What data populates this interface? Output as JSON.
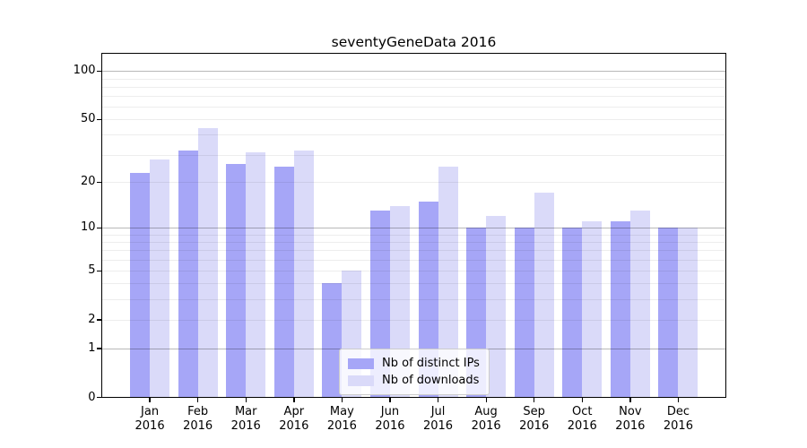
{
  "title": "seventyGeneData 2016",
  "chart_data": {
    "type": "bar",
    "scale": "log1p",
    "title": "seventyGeneData 2016",
    "xlabel": "",
    "ylabel": "",
    "categories": [
      "Jan",
      "Feb",
      "Mar",
      "Apr",
      "May",
      "Jun",
      "Jul",
      "Aug",
      "Sep",
      "Oct",
      "Nov",
      "Dec"
    ],
    "category_year": "2016",
    "series": [
      {
        "name": "Nb of distinct IPs",
        "color": "#a6a6f7",
        "values": [
          23,
          32,
          26,
          25,
          4,
          13,
          15,
          10,
          10,
          10,
          11,
          10
        ]
      },
      {
        "name": "Nb of downloads",
        "color": "#dadaf9",
        "values": [
          28,
          44,
          31,
          32,
          5,
          14,
          25,
          12,
          17,
          11,
          13,
          10
        ]
      }
    ],
    "yticks": [
      0,
      1,
      2,
      5,
      10,
      20,
      50,
      100
    ],
    "ylim": [
      0,
      130
    ],
    "grid": {
      "major": [
        1,
        10,
        100
      ],
      "minor": [
        2,
        3,
        4,
        5,
        6,
        7,
        8,
        9,
        20,
        30,
        40,
        50,
        60,
        70,
        80,
        90
      ]
    },
    "legend_position": "lower center"
  },
  "legend": {
    "item1": "Nb of distinct IPs",
    "item2": "Nb of downloads"
  }
}
